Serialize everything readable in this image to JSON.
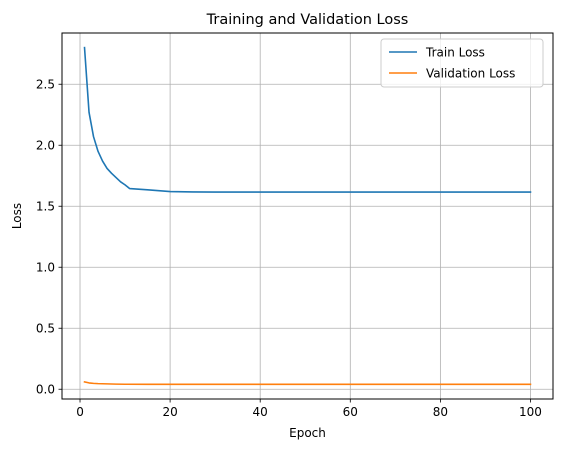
{
  "chart_data": {
    "type": "line",
    "title": "Training and Validation Loss",
    "xlabel": "Epoch",
    "ylabel": "Loss",
    "xlim": [
      -4,
      105
    ],
    "ylim": [
      -0.08,
      2.92
    ],
    "xticks": [
      0,
      20,
      40,
      60,
      80,
      100
    ],
    "yticks": [
      0.0,
      0.5,
      1.0,
      1.5,
      2.0,
      2.5
    ],
    "xtick_labels": [
      "0",
      "20",
      "40",
      "60",
      "80",
      "100"
    ],
    "ytick_labels": [
      "0.0",
      "0.5",
      "1.0",
      "1.5",
      "2.0",
      "2.5"
    ],
    "grid": true,
    "legend_position": "top-right",
    "series": [
      {
        "name": "Train Loss",
        "color": "#1f77b4",
        "x": [
          1,
          2,
          3,
          4,
          5,
          6,
          7,
          8,
          9,
          10,
          11,
          15,
          20,
          25,
          30,
          40,
          50,
          60,
          70,
          80,
          90,
          100
        ],
        "y": [
          2.8,
          2.27,
          2.07,
          1.95,
          1.87,
          1.81,
          1.77,
          1.735,
          1.7,
          1.675,
          1.645,
          1.635,
          1.62,
          1.617,
          1.616,
          1.616,
          1.616,
          1.616,
          1.616,
          1.616,
          1.616,
          1.616
        ]
      },
      {
        "name": "Validation Loss",
        "color": "#ff7f0e",
        "x": [
          1,
          2,
          3,
          4,
          5,
          6,
          8,
          10,
          15,
          20,
          30,
          40,
          50,
          60,
          70,
          80,
          90,
          100
        ],
        "y": [
          0.06,
          0.052,
          0.048,
          0.046,
          0.045,
          0.044,
          0.042,
          0.041,
          0.04,
          0.04,
          0.04,
          0.04,
          0.04,
          0.04,
          0.04,
          0.04,
          0.04,
          0.04
        ]
      }
    ]
  }
}
